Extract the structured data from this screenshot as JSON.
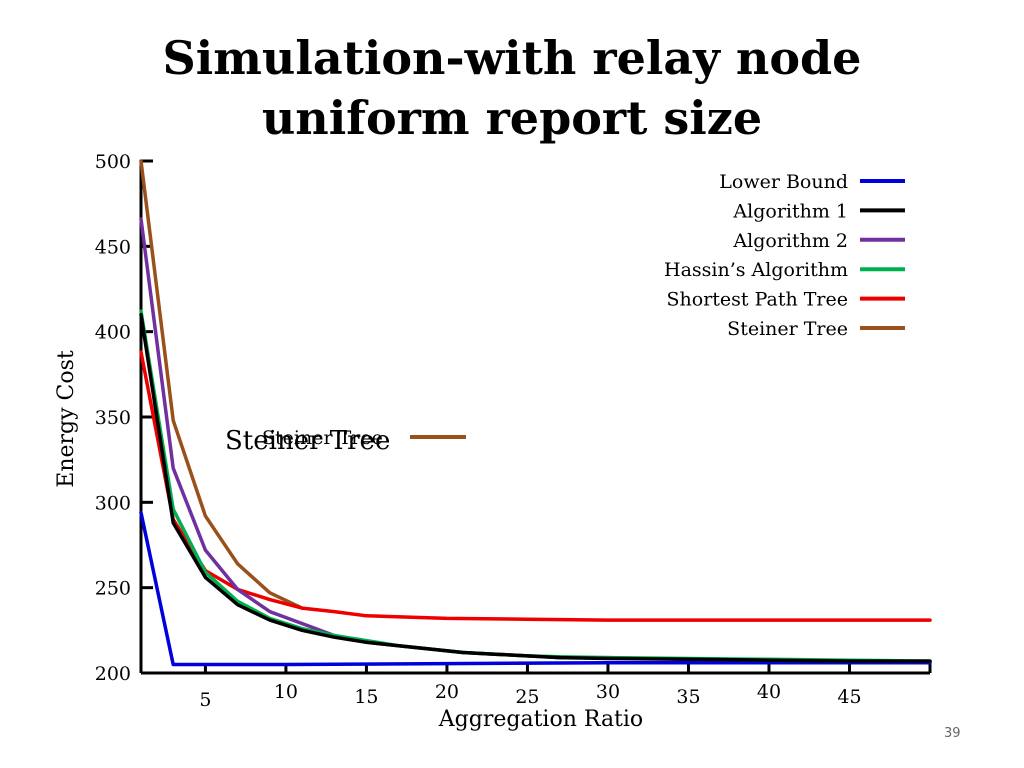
{
  "slide": {
    "title_lines": [
      "Simulation-with relay node",
      "uniform report size"
    ],
    "page_number": "39"
  },
  "chart_data": {
    "type": "line",
    "title": "",
    "xlabel": "Aggregation Ratio",
    "ylabel": "Energy Cost",
    "xlim": [
      1,
      50
    ],
    "ylim": [
      200,
      500
    ],
    "x_ticks": [
      {
        "label": "5",
        "value": 5
      },
      {
        "label": "10",
        "value": 10
      },
      {
        "label": "15",
        "value": 15
      },
      {
        "label": "20",
        "value": 20
      },
      {
        "label": "25",
        "value": 25
      },
      {
        "label": "30",
        "value": 30
      },
      {
        "label": "35",
        "value": 35
      },
      {
        "label": "40",
        "value": 40
      },
      {
        "label": "45",
        "value": 45
      }
    ],
    "y_ticks": [
      200,
      250,
      300,
      350,
      400,
      450,
      500
    ],
    "grid": false,
    "legend_position": "top-right",
    "series": [
      {
        "name": "Lower Bound",
        "color": "#0000dd",
        "x": [
          1,
          3,
          10,
          20,
          30,
          40,
          50
        ],
        "values": [
          294,
          205,
          205,
          205.5,
          206,
          206,
          206
        ]
      },
      {
        "name": "Algorithm 1",
        "color": "#000000",
        "x": [
          1,
          3,
          5,
          7,
          9,
          11,
          13,
          15,
          17,
          19,
          21,
          23,
          25,
          27,
          30,
          35,
          40,
          45,
          50
        ],
        "values": [
          410,
          288,
          256,
          240,
          231,
          225,
          221,
          218,
          216,
          214,
          212,
          211,
          210,
          209,
          208.5,
          208,
          207.5,
          207,
          207
        ]
      },
      {
        "name": "Algorithm 2",
        "color": "#7030a0",
        "x": [
          1,
          3,
          5,
          7,
          9,
          11,
          13,
          15,
          17,
          19,
          21,
          23,
          25,
          27,
          30,
          35,
          40,
          45,
          50
        ],
        "values": [
          466,
          320,
          272,
          249,
          236,
          229,
          222,
          218,
          216,
          214,
          212,
          211,
          210,
          209,
          209,
          208,
          207.5,
          207,
          207
        ]
      },
      {
        "name": "Hassin’s Algorithm",
        "color": "#00b050",
        "x": [
          1,
          3,
          5,
          7,
          9,
          11,
          13,
          15,
          17,
          19,
          21,
          23,
          25,
          27,
          30,
          35,
          40,
          45,
          50
        ],
        "values": [
          412,
          296,
          259,
          242,
          232,
          226,
          222,
          219,
          216,
          214,
          212,
          211,
          210,
          209.5,
          209,
          208.5,
          208,
          207.5,
          207
        ]
      },
      {
        "name": "Shortest Path Tree",
        "color": "#ee0000",
        "x": [
          1,
          3,
          5,
          7,
          9,
          11,
          13,
          15,
          20,
          25,
          30,
          40,
          50
        ],
        "values": [
          388,
          290,
          260,
          249,
          243,
          238,
          236,
          233.5,
          232,
          231.5,
          231,
          231,
          231
        ]
      },
      {
        "name": "Steiner Tree",
        "color": "#99501a",
        "x": [
          1,
          3,
          5,
          7,
          9,
          11
        ],
        "values": [
          500,
          348,
          292,
          264,
          247,
          238
        ]
      }
    ],
    "annotations": [
      {
        "text": "Steiner Tree",
        "layer": "back",
        "font_size": 19
      },
      {
        "text": "Steiner Tree",
        "layer": "front",
        "font_size": 26
      }
    ]
  }
}
